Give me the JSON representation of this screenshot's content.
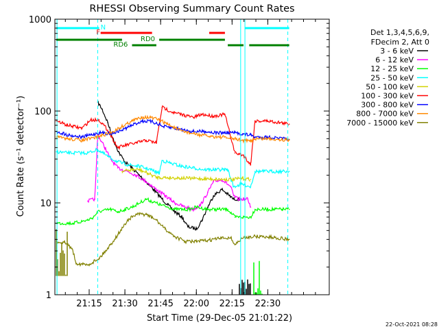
{
  "chart_data": {
    "type": "line",
    "title": "RHESSI Observing Summary Count Rates",
    "xlabel": "Start Time (29-Dec-05 21:01:22)",
    "ylabel": "Count Rate (s⁻¹ detector⁻¹)",
    "yscale": "log",
    "ylim": [
      1,
      1000
    ],
    "xlim": [
      21.01,
      22.93
    ],
    "x_ticks": [
      {
        "v": 21.25,
        "label": "21:15"
      },
      {
        "v": 21.5,
        "label": "21:30"
      },
      {
        "v": 21.75,
        "label": "21:45"
      },
      {
        "v": 22.0,
        "label": "22:00"
      },
      {
        "v": 22.25,
        "label": "22:15"
      },
      {
        "v": 22.5,
        "label": "22:30"
      }
    ],
    "y_ticks": [
      {
        "v": 1,
        "label": "1"
      },
      {
        "v": 10,
        "label": "10"
      },
      {
        "v": 100,
        "label": "100"
      },
      {
        "v": 1000,
        "label": "1000"
      }
    ],
    "legend_header": [
      "Det 1,3,4,5,6,9,",
      "FDecim 2, Att 0"
    ],
    "series": [
      {
        "name": "3 - 6 keV",
        "color": "#000000",
        "points": [
          [
            21.31,
            125
          ],
          [
            21.34,
            105
          ],
          [
            21.38,
            75
          ],
          [
            21.42,
            48
          ],
          [
            21.46,
            35
          ],
          [
            21.5,
            28
          ],
          [
            21.55,
            24
          ],
          [
            21.6,
            20
          ],
          [
            21.65,
            17
          ],
          [
            21.7,
            14
          ],
          [
            21.75,
            11.5
          ],
          [
            21.8,
            9.5
          ],
          [
            21.85,
            8
          ],
          [
            21.9,
            7
          ],
          [
            21.94,
            5.5
          ],
          [
            22.0,
            5.2
          ],
          [
            22.04,
            6.5
          ],
          [
            22.08,
            9
          ],
          [
            22.12,
            12
          ],
          [
            22.18,
            14
          ],
          [
            22.23,
            12
          ],
          [
            22.26,
            11
          ],
          [
            22.31,
            11
          ]
        ]
      },
      {
        "name": "6 - 12 keV",
        "color": "#ff00ff",
        "points": [
          [
            21.24,
            10.5
          ],
          [
            21.29,
            11
          ],
          [
            21.31,
            55
          ],
          [
            21.36,
            40
          ],
          [
            21.4,
            30
          ],
          [
            21.45,
            24
          ],
          [
            21.52,
            22
          ],
          [
            21.58,
            20
          ],
          [
            21.65,
            17
          ],
          [
            21.72,
            14
          ],
          [
            21.78,
            12
          ],
          [
            21.85,
            10
          ],
          [
            21.92,
            9
          ],
          [
            21.98,
            8.5
          ],
          [
            22.03,
            9.5
          ],
          [
            22.08,
            13
          ],
          [
            22.12,
            17
          ],
          [
            22.18,
            18
          ],
          [
            22.24,
            15
          ],
          [
            22.26,
            12
          ],
          [
            22.29,
            11
          ],
          [
            22.36,
            11
          ],
          [
            22.38,
            9
          ]
        ]
      },
      {
        "name": "12 - 25 keV",
        "color": "#00ff00",
        "points": [
          [
            21.02,
            6
          ],
          [
            21.1,
            6
          ],
          [
            21.14,
            6
          ],
          [
            21.24,
            6.5
          ],
          [
            21.28,
            7
          ],
          [
            21.31,
            8
          ],
          [
            21.4,
            8.5
          ],
          [
            21.45,
            8
          ],
          [
            21.55,
            9
          ],
          [
            21.65,
            11
          ],
          [
            21.75,
            9.5
          ],
          [
            21.8,
            9
          ],
          [
            21.85,
            8.5
          ],
          [
            21.95,
            8.5
          ],
          [
            22.0,
            9
          ],
          [
            22.08,
            8.5
          ],
          [
            22.15,
            8.5
          ],
          [
            22.22,
            8.5
          ],
          [
            22.27,
            7
          ],
          [
            22.33,
            7
          ],
          [
            22.38,
            7
          ],
          [
            22.41,
            8.5
          ],
          [
            22.5,
            8.5
          ],
          [
            22.6,
            8.5
          ],
          [
            22.65,
            8.5
          ]
        ]
      },
      {
        "name": "25 - 50 keV",
        "color": "#00ffff",
        "points": [
          [
            21.02,
            36
          ],
          [
            21.1,
            35
          ],
          [
            21.24,
            35
          ],
          [
            21.31,
            38
          ],
          [
            21.38,
            32
          ],
          [
            21.45,
            28
          ],
          [
            21.52,
            26
          ],
          [
            21.6,
            25
          ],
          [
            21.68,
            23
          ],
          [
            21.74,
            21
          ],
          [
            21.76,
            29
          ],
          [
            21.82,
            27
          ],
          [
            21.9,
            25
          ],
          [
            21.98,
            24
          ],
          [
            22.06,
            23
          ],
          [
            22.14,
            23
          ],
          [
            22.22,
            23
          ],
          [
            22.26,
            15
          ],
          [
            22.32,
            16
          ],
          [
            22.38,
            15
          ],
          [
            22.41,
            22
          ],
          [
            22.5,
            22
          ],
          [
            22.58,
            22
          ],
          [
            22.65,
            22
          ]
        ]
      },
      {
        "name": "50 - 100 keV",
        "color": "#d2d200",
        "points": [
          [
            21.48,
            22
          ],
          [
            21.55,
            23
          ],
          [
            21.6,
            23
          ],
          [
            21.66,
            21
          ],
          [
            21.72,
            19
          ],
          [
            22.2,
            18
          ],
          [
            22.26,
            18
          ],
          [
            22.32,
            18.5
          ],
          [
            22.38,
            18
          ]
        ]
      },
      {
        "name": "100 - 300 keV",
        "color": "#ff0000",
        "points": [
          [
            21.02,
            78
          ],
          [
            21.1,
            70
          ],
          [
            21.2,
            65
          ],
          [
            21.26,
            80
          ],
          [
            21.32,
            80
          ],
          [
            21.38,
            62
          ],
          [
            21.45,
            40
          ],
          [
            21.52,
            43
          ],
          [
            21.58,
            45
          ],
          [
            21.65,
            48
          ],
          [
            21.72,
            45
          ],
          [
            21.76,
            110
          ],
          [
            21.85,
            95
          ],
          [
            21.92,
            90
          ],
          [
            21.98,
            85
          ],
          [
            22.04,
            92
          ],
          [
            22.12,
            88
          ],
          [
            22.2,
            92
          ],
          [
            22.27,
            35
          ],
          [
            22.33,
            33
          ],
          [
            22.38,
            26
          ],
          [
            22.41,
            78
          ],
          [
            22.5,
            78
          ],
          [
            22.58,
            75
          ],
          [
            22.65,
            72
          ]
        ]
      },
      {
        "name": "300 - 800 keV",
        "color": "#0000ff",
        "points": [
          [
            21.02,
            60
          ],
          [
            21.1,
            55
          ],
          [
            21.2,
            52
          ],
          [
            21.26,
            55
          ],
          [
            21.32,
            58
          ],
          [
            21.4,
            57
          ],
          [
            21.48,
            62
          ],
          [
            21.55,
            70
          ],
          [
            21.62,
            78
          ],
          [
            21.68,
            77
          ],
          [
            21.74,
            72
          ],
          [
            21.76,
            68
          ],
          [
            21.85,
            65
          ],
          [
            21.92,
            62
          ],
          [
            21.98,
            60
          ],
          [
            22.06,
            60
          ],
          [
            22.14,
            58
          ],
          [
            22.2,
            58
          ],
          [
            22.27,
            58
          ],
          [
            22.33,
            56
          ],
          [
            22.38,
            55
          ],
          [
            22.41,
            52
          ],
          [
            22.5,
            52
          ],
          [
            22.6,
            50
          ],
          [
            22.65,
            49
          ]
        ]
      },
      {
        "name": "800 - 7000 keV",
        "color": "#ff8800",
        "points": [
          [
            21.02,
            52
          ],
          [
            21.1,
            50
          ],
          [
            21.2,
            48
          ],
          [
            21.26,
            50
          ],
          [
            21.32,
            53
          ],
          [
            21.4,
            58
          ],
          [
            21.48,
            68
          ],
          [
            21.55,
            78
          ],
          [
            21.62,
            86
          ],
          [
            21.68,
            85
          ],
          [
            21.74,
            80
          ],
          [
            21.8,
            72
          ],
          [
            21.88,
            62
          ],
          [
            21.95,
            58
          ],
          [
            22.02,
            55
          ],
          [
            22.1,
            53
          ],
          [
            22.18,
            52
          ],
          [
            22.26,
            50
          ],
          [
            22.32,
            48
          ],
          [
            22.38,
            47
          ],
          [
            22.41,
            50
          ],
          [
            22.5,
            50
          ],
          [
            22.6,
            49
          ],
          [
            22.65,
            48
          ]
        ]
      },
      {
        "name": "7000 - 15000 keV",
        "color": "#808000",
        "points": [
          [
            21.02,
            3.8
          ],
          [
            21.08,
            3.7
          ],
          [
            21.13,
            3.2
          ],
          [
            21.16,
            2.2
          ],
          [
            21.24,
            2.1
          ],
          [
            21.32,
            2.5
          ],
          [
            21.38,
            3.2
          ],
          [
            21.45,
            4.5
          ],
          [
            21.52,
            6.5
          ],
          [
            21.58,
            7.5
          ],
          [
            21.65,
            7.5
          ],
          [
            21.72,
            6.5
          ],
          [
            21.78,
            5.2
          ],
          [
            21.85,
            4.3
          ],
          [
            21.92,
            3.8
          ],
          [
            22.0,
            3.8
          ],
          [
            22.08,
            3.9
          ],
          [
            22.16,
            4.1
          ],
          [
            22.24,
            4.2
          ],
          [
            22.27,
            3.5
          ],
          [
            22.32,
            4.1
          ],
          [
            22.38,
            4.3
          ],
          [
            22.45,
            4.3
          ],
          [
            22.55,
            4.2
          ],
          [
            22.65,
            4
          ]
        ]
      }
    ],
    "spike_traces": [
      {
        "series": "7000 - 15000 keV",
        "color": "#808000",
        "x": [
          21.02,
          21.1
        ],
        "y": [
          1.6,
          5.6
        ]
      },
      {
        "series": "12 - 25 keV",
        "color": "#00ff00",
        "x": [
          22.4,
          22.46
        ],
        "y": [
          1,
          3.5
        ]
      },
      {
        "series": "3 - 6 keV",
        "color": "#000000",
        "x": [
          22.3,
          22.38
        ],
        "y": [
          1,
          1.6
        ]
      }
    ],
    "flags": [
      {
        "name": "SAA",
        "label": "",
        "color": "#00ffff",
        "segments": [
          [
            21.02,
            21.32
          ],
          [
            22.34,
            22.65
          ]
        ],
        "level": 1
      },
      {
        "name": "N",
        "label": "N",
        "color": "#00ffff",
        "label_at": 21.33,
        "segments": [],
        "level": 1
      },
      {
        "name": "F",
        "label": "F",
        "color": "#ff0000",
        "label_at": 21.3,
        "segments": [
          [
            21.33,
            21.69
          ],
          [
            22.09,
            22.2
          ]
        ],
        "level": 2
      },
      {
        "name": "RD0",
        "label": "RD0",
        "color": "#008000",
        "label_at": 21.61,
        "segments": [
          [
            21.02,
            21.48
          ],
          [
            21.74,
            22.2
          ]
        ],
        "level": 3
      },
      {
        "name": "RD6",
        "label": "RD6",
        "color": "#008000",
        "label_at": 21.42,
        "segments": [
          [
            21.55,
            21.72
          ],
          [
            22.22,
            22.33
          ],
          [
            22.37,
            22.65
          ]
        ],
        "level": 4
      }
    ],
    "vlines": [
      {
        "x": 21.31,
        "style": "dashed"
      },
      {
        "x": 22.64,
        "style": "dashed"
      },
      {
        "x": 21.025,
        "style": "solid"
      },
      {
        "x": 22.31,
        "style": "solid"
      },
      {
        "x": 22.34,
        "style": "solid"
      }
    ]
  },
  "footer_timestamp": "22-Oct-2021 08:28"
}
